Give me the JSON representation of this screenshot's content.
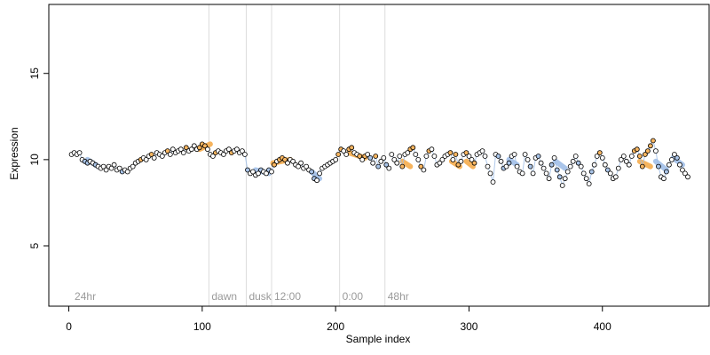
{
  "chart_data": {
    "type": "scatter",
    "xlabel": "Sample index",
    "ylabel": "Expression",
    "xlim": [
      -15,
      480
    ],
    "ylim": [
      1.5,
      19
    ],
    "x_ticks": [
      {
        "value": 0,
        "label": "0"
      },
      {
        "value": 100,
        "label": "100"
      },
      {
        "value": 200,
        "label": "200"
      },
      {
        "value": 300,
        "label": "300"
      },
      {
        "value": 400,
        "label": "400"
      }
    ],
    "y_ticks": [
      {
        "value": 5,
        "label": "5"
      },
      {
        "value": 10,
        "label": "10"
      },
      {
        "value": 15,
        "label": "15"
      }
    ],
    "grid": false,
    "reference_lines": [
      {
        "x": 105,
        "label": "dawn"
      },
      {
        "x": 133,
        "label": "dusk"
      },
      {
        "x": 152,
        "label": "12:00"
      },
      {
        "x": 203,
        "label": "0:00"
      },
      {
        "x": 237,
        "label": "48hr"
      }
    ],
    "annotations": [
      {
        "x": 3,
        "label": "24hr"
      }
    ],
    "colors": {
      "point_stroke": "#000000",
      "point_default": "#ffffff",
      "point_high": "#f7b560",
      "point_low": "#a9c4e8",
      "band_high": "#f4a742",
      "band_low": "#9bbbe6",
      "reference_line": "#dcdcdc",
      "annotation_text": "#9a9a9a"
    },
    "bands": [
      {
        "kind": "low",
        "x": [
          14,
          22
        ],
        "y": [
          10.0,
          9.6
        ]
      },
      {
        "kind": "high",
        "x": [
          98,
          106
        ],
        "y": [
          10.6,
          10.9
        ]
      },
      {
        "kind": "low",
        "x": [
          140,
          150
        ],
        "y": [
          9.4,
          9.2
        ]
      },
      {
        "kind": "high",
        "x": [
          153,
          166
        ],
        "y": [
          9.8,
          10.0
        ]
      },
      {
        "kind": "low",
        "x": [
          182,
          188
        ],
        "y": [
          9.3,
          8.9
        ]
      },
      {
        "kind": "high",
        "x": [
          210,
          222
        ],
        "y": [
          10.4,
          10.1
        ]
      },
      {
        "kind": "high",
        "x": [
          250,
          256
        ],
        "y": [
          9.9,
          9.6
        ]
      },
      {
        "kind": "high",
        "x": [
          287,
          293
        ],
        "y": [
          9.9,
          9.6
        ]
      },
      {
        "kind": "high",
        "x": [
          298,
          303
        ],
        "y": [
          9.9,
          9.6
        ]
      },
      {
        "kind": "low",
        "x": [
          330,
          336
        ],
        "y": [
          10.0,
          9.7
        ]
      },
      {
        "kind": "low",
        "x": [
          365,
          372
        ],
        "y": [
          9.9,
          9.5
        ]
      },
      {
        "kind": "high",
        "x": [
          428,
          436
        ],
        "y": [
          9.9,
          9.6
        ]
      },
      {
        "kind": "low",
        "x": [
          440,
          448
        ],
        "y": [
          9.9,
          9.4
        ]
      },
      {
        "kind": "low",
        "x": [
          453,
          460
        ],
        "y": [
          10.1,
          9.7
        ]
      }
    ],
    "series": [
      {
        "x": [
          2,
          4,
          6,
          8,
          10,
          12,
          14,
          16,
          18,
          20,
          22,
          24,
          26,
          28,
          30,
          32,
          34,
          36,
          38,
          40,
          42,
          44,
          46,
          48,
          50,
          52,
          54,
          56,
          58,
          60,
          62,
          64,
          66,
          68,
          70,
          72,
          74,
          76,
          78,
          80,
          82,
          84,
          86,
          88,
          90,
          92,
          94,
          96,
          98,
          100,
          102,
          104,
          106,
          108,
          110,
          112,
          114,
          116,
          118,
          120,
          122,
          124,
          126,
          128,
          130,
          132,
          134,
          136,
          138,
          140,
          142,
          144,
          146,
          148,
          150,
          152,
          154,
          156,
          158,
          160,
          162,
          164,
          166,
          168,
          170,
          172,
          174,
          176,
          178,
          180,
          182,
          184,
          186,
          188,
          190,
          192,
          194,
          196,
          198,
          200,
          202,
          204,
          206,
          208,
          210,
          212,
          214,
          216,
          218,
          220,
          222,
          224,
          226,
          228,
          230,
          232,
          234,
          236,
          238,
          240
        ],
        "y": [
          10.3,
          10.4,
          10.3,
          10.4,
          10.0,
          9.9,
          9.8,
          9.9,
          9.8,
          9.7,
          9.6,
          9.5,
          9.6,
          9.4,
          9.6,
          9.5,
          9.7,
          9.4,
          9.5,
          9.3,
          9.4,
          9.3,
          9.5,
          9.6,
          9.8,
          9.9,
          10.0,
          10.1,
          10.0,
          10.2,
          10.3,
          10.1,
          10.4,
          10.3,
          10.2,
          10.4,
          10.5,
          10.3,
          10.6,
          10.4,
          10.5,
          10.6,
          10.4,
          10.7,
          10.5,
          10.6,
          10.8,
          10.6,
          10.7,
          10.9,
          10.8,
          10.6,
          10.3,
          10.2,
          10.4,
          10.5,
          10.4,
          10.3,
          10.5,
          10.6,
          10.4,
          10.5,
          10.6,
          10.4,
          10.5,
          10.3,
          9.4,
          9.2,
          9.3,
          9.1,
          9.2,
          9.4,
          9.3,
          9.2,
          9.4,
          9.3,
          9.7,
          9.9,
          10.0,
          10.1,
          10.0,
          9.8,
          10.0,
          9.9,
          9.7,
          9.6,
          9.8,
          9.5,
          9.6,
          9.4,
          9.3,
          8.9,
          8.8,
          9.2,
          9.5,
          9.6,
          9.7,
          9.8,
          9.9,
          10.0,
          10.3,
          10.6,
          10.5,
          10.3,
          10.6,
          10.7,
          10.4,
          10.3,
          10.2,
          10.0,
          10.2,
          10.3,
          10.1,
          9.8,
          10.2,
          9.6,
          9.9,
          10.1,
          9.7,
          9.5
        ],
        "kinds": [
          "n",
          "n",
          "n",
          "n",
          "n",
          "l",
          "l",
          "n",
          "n",
          "l",
          "n",
          "n",
          "n",
          "n",
          "n",
          "n",
          "n",
          "n",
          "n",
          "l",
          "n",
          "n",
          "n",
          "n",
          "n",
          "n",
          "h",
          "n",
          "n",
          "n",
          "h",
          "n",
          "n",
          "n",
          "n",
          "n",
          "h",
          "n",
          "n",
          "n",
          "n",
          "n",
          "n",
          "h",
          "n",
          "n",
          "n",
          "n",
          "h",
          "h",
          "h",
          "n",
          "n",
          "n",
          "h",
          "n",
          "n",
          "n",
          "n",
          "n",
          "h",
          "n",
          "n",
          "n",
          "n",
          "n",
          "l",
          "n",
          "n",
          "n",
          "n",
          "l",
          "n",
          "n",
          "l",
          "n",
          "h",
          "n",
          "h",
          "h",
          "h",
          "n",
          "n",
          "n",
          "n",
          "n",
          "n",
          "n",
          "n",
          "n",
          "l",
          "l",
          "n",
          "n",
          "n",
          "n",
          "n",
          "n",
          "n",
          "n",
          "h",
          "h",
          "n",
          "n",
          "h",
          "h",
          "n",
          "n",
          "h",
          "n",
          "h",
          "n",
          "l",
          "n",
          "h",
          "l",
          "n",
          "n",
          "l",
          "n"
        ]
      },
      {
        "x": [
          242,
          244,
          246,
          248,
          250,
          252,
          254,
          256,
          258,
          260,
          262,
          264,
          266,
          268,
          270,
          272,
          274,
          276,
          278,
          280,
          282,
          284,
          286,
          288,
          290,
          292,
          294,
          296,
          298,
          300,
          302,
          304,
          306,
          308,
          310,
          312,
          314,
          316,
          318,
          320,
          322,
          324,
          326,
          328,
          330,
          332,
          334,
          336,
          338,
          340,
          342,
          344,
          346,
          348,
          350,
          352,
          354,
          356,
          358,
          360,
          362,
          364,
          366,
          368,
          370,
          372,
          374,
          376,
          378,
          380,
          382,
          384,
          386,
          388,
          390,
          392,
          394,
          396,
          398,
          400,
          402,
          404,
          406,
          408,
          410,
          412,
          414,
          416,
          418,
          420,
          422,
          424,
          426,
          428,
          430,
          432,
          434,
          436,
          438,
          440,
          442,
          444,
          446,
          448,
          450,
          452,
          454,
          456,
          458,
          460,
          462,
          464
        ],
        "y": [
          10.3,
          10.0,
          9.8,
          10.2,
          9.6,
          10.3,
          10.4,
          10.6,
          10.7,
          10.3,
          10.0,
          9.6,
          9.4,
          10.2,
          10.5,
          10.6,
          10.2,
          9.7,
          9.8,
          10.0,
          10.2,
          10.3,
          10.4,
          10.0,
          10.3,
          9.7,
          9.9,
          10.3,
          10.4,
          10.2,
          10.0,
          9.8,
          10.3,
          10.4,
          10.5,
          10.2,
          9.6,
          9.2,
          8.7,
          10.3,
          10.2,
          9.9,
          9.5,
          9.6,
          9.8,
          10.2,
          10.3,
          9.6,
          9.3,
          9.2,
          10.3,
          10.0,
          9.6,
          9.2,
          10.1,
          10.2,
          9.8,
          9.5,
          9.2,
          8.9,
          9.7,
          10.1,
          9.4,
          9.0,
          8.5,
          8.9,
          9.3,
          9.6,
          9.9,
          10.2,
          9.8,
          9.6,
          9.2,
          8.9,
          8.6,
          9.3,
          9.7,
          10.2,
          10.4,
          10.1,
          9.7,
          9.4,
          9.2,
          8.9,
          9.0,
          9.5,
          10.0,
          10.2,
          9.9,
          9.7,
          10.2,
          10.5,
          10.6,
          10.2,
          9.6,
          10.3,
          10.5,
          10.8,
          11.1,
          10.5,
          9.6,
          9.0,
          8.9,
          9.3,
          9.7,
          10.0,
          10.3,
          10.1,
          9.7,
          9.4,
          9.2,
          9.0
        ],
        "kinds": [
          "n",
          "n",
          "n",
          "n",
          "h",
          "n",
          "n",
          "h",
          "h",
          "n",
          "n",
          "h",
          "n",
          "n",
          "h",
          "n",
          "n",
          "n",
          "n",
          "n",
          "n",
          "n",
          "h",
          "n",
          "h",
          "h",
          "n",
          "n",
          "h",
          "n",
          "n",
          "h",
          "n",
          "n",
          "n",
          "n",
          "n",
          "n",
          "n",
          "n",
          "l",
          "n",
          "l",
          "n",
          "l",
          "n",
          "n",
          "n",
          "n",
          "n",
          "n",
          "n",
          "l",
          "n",
          "n",
          "l",
          "n",
          "n",
          "n",
          "n",
          "l",
          "n",
          "l",
          "l",
          "n",
          "n",
          "n",
          "n",
          "n",
          "n",
          "l",
          "n",
          "n",
          "n",
          "n",
          "l",
          "n",
          "n",
          "h",
          "n",
          "n",
          "l",
          "n",
          "n",
          "n",
          "n",
          "n",
          "n",
          "n",
          "n",
          "n",
          "h",
          "h",
          "h",
          "h",
          "h",
          "h",
          "h",
          "h",
          "n",
          "l",
          "n",
          "n",
          "l",
          "n",
          "n",
          "n",
          "l",
          "n",
          "n",
          "n",
          "n"
        ]
      }
    ]
  }
}
